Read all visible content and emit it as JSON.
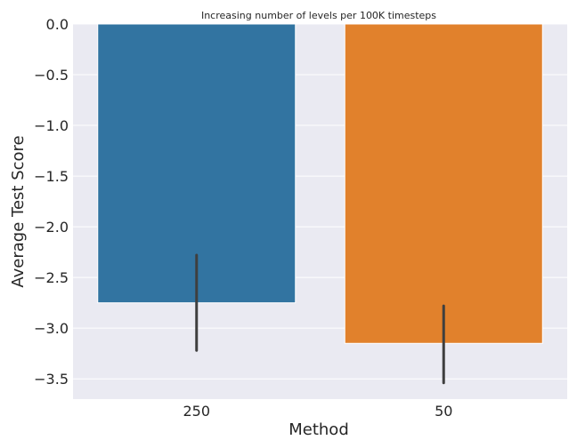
{
  "chart_data": {
    "type": "bar",
    "title": "Increasing number of levels per 100K timesteps",
    "xlabel": "Method",
    "ylabel": "Average Test Score",
    "categories": [
      "250",
      "50"
    ],
    "values": [
      -2.75,
      -3.15
    ],
    "error_bars": [
      {
        "low": -3.22,
        "high": -2.28
      },
      {
        "low": -3.54,
        "high": -2.78
      }
    ],
    "ylim": [
      -3.7,
      0.0
    ],
    "yticks": [
      "0.0",
      "−0.5",
      "−1.0",
      "−1.5",
      "−2.0",
      "−2.5",
      "−3.0",
      "−3.5"
    ],
    "ytick_values": [
      0.0,
      -0.5,
      -1.0,
      -1.5,
      -2.0,
      -2.5,
      -3.0,
      -3.5
    ],
    "grid": true,
    "colors": {
      "bars": [
        "#3274a1",
        "#e1812c"
      ],
      "background": "#eaeaf2",
      "grid": "#ffffff",
      "error_bar": "#3f3f3f",
      "text": "#262626"
    }
  }
}
